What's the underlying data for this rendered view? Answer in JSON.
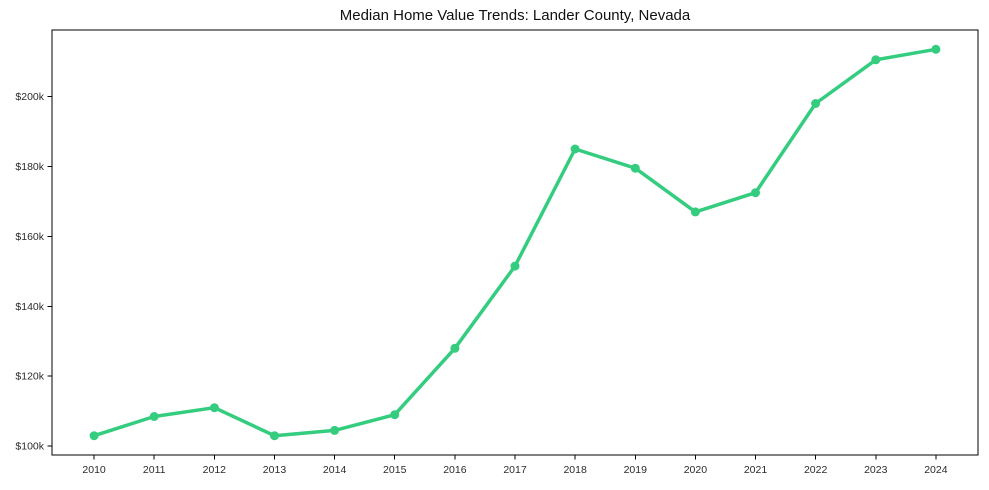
{
  "chart_data": {
    "type": "line",
    "title": "Median Home Value Trends: Lander County, Nevada",
    "xlabel": "",
    "ylabel": "",
    "x": [
      2010,
      2011,
      2012,
      2013,
      2014,
      2015,
      2016,
      2017,
      2018,
      2019,
      2020,
      2021,
      2022,
      2023,
      2024
    ],
    "x_tick_labels": [
      "2010",
      "2011",
      "2012",
      "2013",
      "2014",
      "2015",
      "2016",
      "2017",
      "2018",
      "2019",
      "2020",
      "2021",
      "2022",
      "2023",
      "2024"
    ],
    "y_ticks": [
      100000,
      120000,
      140000,
      160000,
      180000,
      200000
    ],
    "y_tick_labels": [
      "$100k",
      "$120k",
      "$140k",
      "$160k",
      "$180k",
      "$200k"
    ],
    "series": [
      {
        "name": "Median Home Value",
        "values": [
          103000,
          108500,
          111000,
          103000,
          104500,
          109000,
          128000,
          151500,
          185000,
          179500,
          167000,
          172500,
          198000,
          210500,
          213500
        ]
      }
    ],
    "xlim": [
      2009.3,
      2024.7
    ],
    "ylim": [
      97475,
      219025
    ],
    "grid": false,
    "legend_position": "none",
    "marker": "circle",
    "line_color": "#34cd7f",
    "axis_color": "#000000",
    "tick_label_color": "#2b2b2b",
    "background_color": "#ffffff"
  }
}
